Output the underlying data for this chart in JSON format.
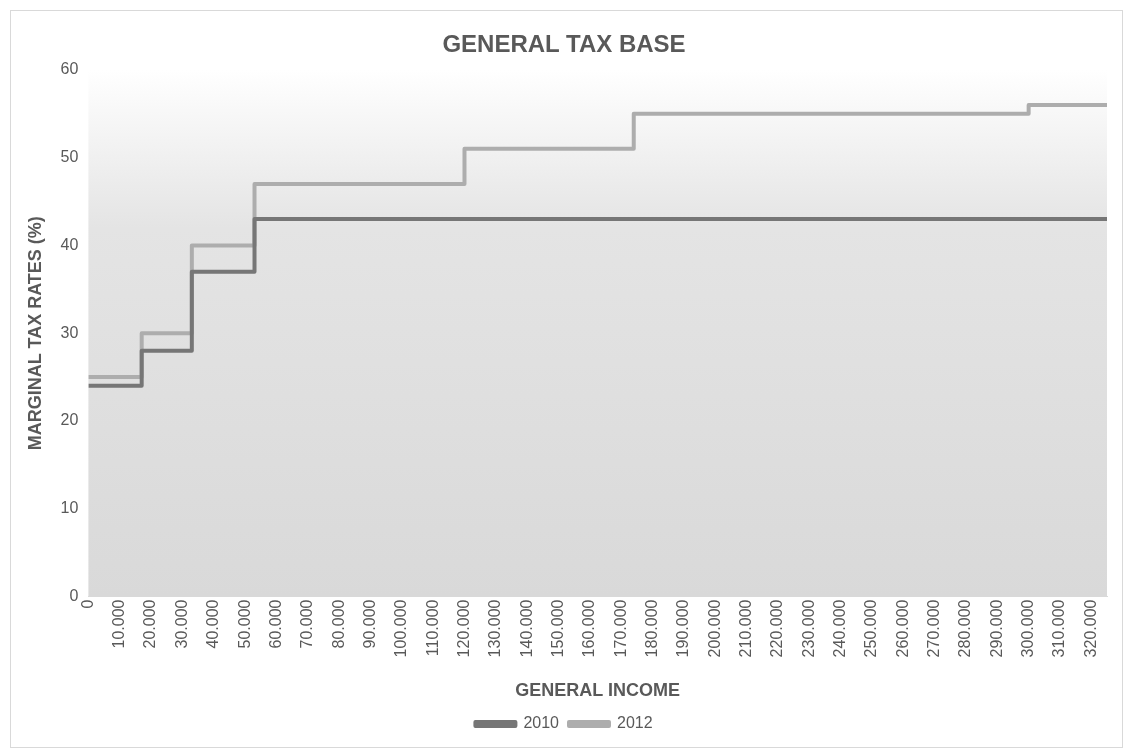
{
  "chart_data": {
    "type": "step",
    "title": "GENERAL TAX BASE",
    "xlabel": "GENERAL INCOME",
    "ylabel": "MARGINAL TAX RATES (%)",
    "series": [
      {
        "name": "2010",
        "color": "#767676",
        "x": [
          0,
          17000,
          33000,
          53000,
          325000
        ],
        "values": [
          24,
          28,
          37,
          43,
          43
        ]
      },
      {
        "name": "2012",
        "color": "#adadad",
        "x": [
          0,
          17000,
          33000,
          53000,
          120000,
          174000,
          300000,
          325000
        ],
        "values": [
          25,
          30,
          40,
          47,
          51,
          55,
          56,
          56
        ]
      }
    ],
    "xlim": [
      0,
      325000
    ],
    "xticks": [
      0,
      {
        "value": 10000,
        "label": "10.000"
      },
      {
        "value": 20000,
        "label": "20.000"
      },
      {
        "value": 30000,
        "label": "30.000"
      },
      {
        "value": 40000,
        "label": "40.000"
      },
      {
        "value": 50000,
        "label": "50.000"
      },
      {
        "value": 60000,
        "label": "60.000"
      },
      {
        "value": 70000,
        "label": "70.000"
      },
      {
        "value": 80000,
        "label": "80.000"
      },
      {
        "value": 90000,
        "label": "90.000"
      },
      {
        "value": 100000,
        "label": "100.000"
      },
      {
        "value": 110000,
        "label": "110.000"
      },
      {
        "value": 120000,
        "label": "120.000"
      },
      {
        "value": 130000,
        "label": "130.000"
      },
      {
        "value": 140000,
        "label": "140.000"
      },
      {
        "value": 150000,
        "label": "150.000"
      },
      {
        "value": 160000,
        "label": "160.000"
      },
      {
        "value": 170000,
        "label": "170.000"
      },
      {
        "value": 180000,
        "label": "180.000"
      },
      {
        "value": 190000,
        "label": "190.000"
      },
      {
        "value": 200000,
        "label": "200.000"
      },
      {
        "value": 210000,
        "label": "210.000"
      },
      {
        "value": 220000,
        "label": "220.000"
      },
      {
        "value": 230000,
        "label": "230.000"
      },
      {
        "value": 240000,
        "label": "240.000"
      },
      {
        "value": 250000,
        "label": "250.000"
      },
      {
        "value": 260000,
        "label": "260.000"
      },
      {
        "value": 270000,
        "label": "270.000"
      },
      {
        "value": 280000,
        "label": "280.000"
      },
      {
        "value": 290000,
        "label": "290.000"
      },
      {
        "value": 300000,
        "label": "300.000"
      },
      {
        "value": 310000,
        "label": "310.000"
      },
      {
        "value": 320000,
        "label": "320.000"
      }
    ],
    "ylim": [
      0,
      60
    ],
    "yticks": [
      0,
      10,
      20,
      30,
      40,
      50,
      60
    ],
    "grid": false,
    "legend": "bottom",
    "marker": "none",
    "line_style": "solid"
  }
}
